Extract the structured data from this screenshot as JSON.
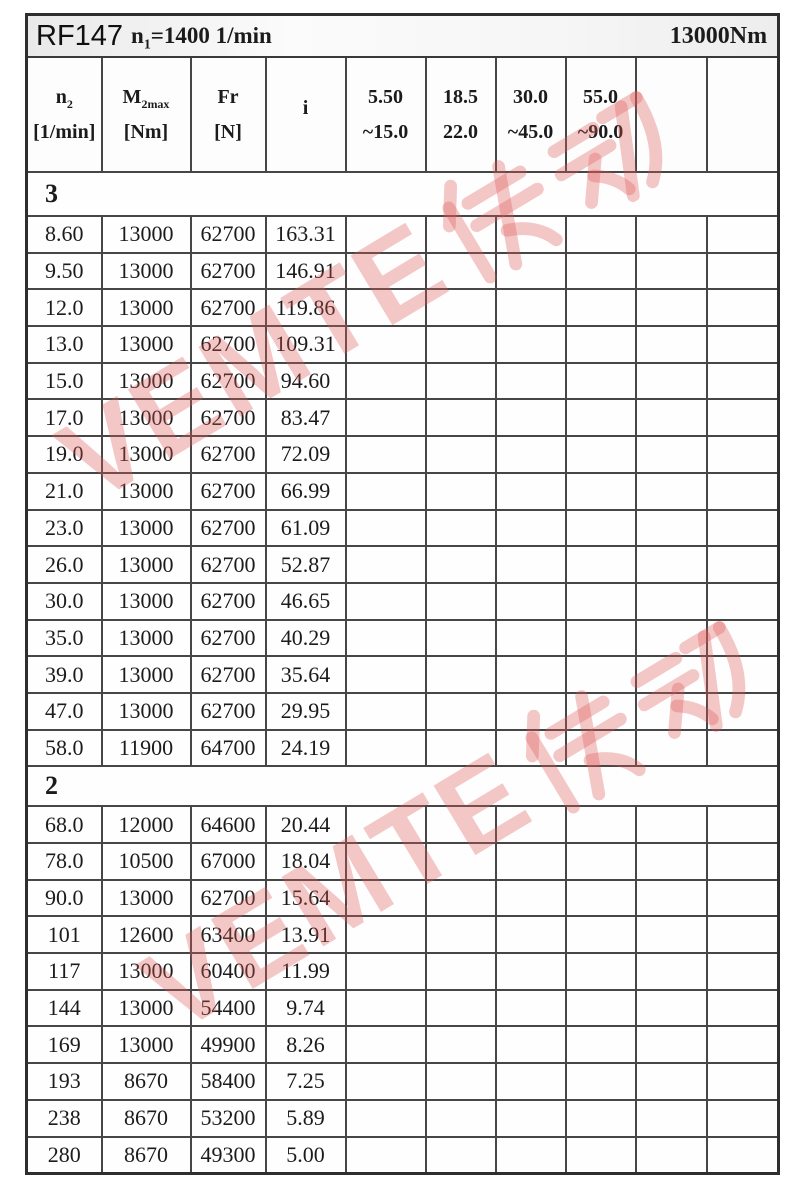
{
  "header": {
    "model": "RF147",
    "n1_prefix": "n",
    "n1_sub": "1",
    "n1_rest": "=1400 1/min",
    "torque": "13000Nm"
  },
  "columns": [
    {
      "t1": "n",
      "sub": "2",
      "line2": "[1/min]"
    },
    {
      "t1": "M",
      "sub": "2max",
      "line2": "[Nm]"
    },
    {
      "t1": "Fr",
      "sub": "",
      "line2": "[N]"
    },
    {
      "t1": "i",
      "sub": "",
      "line2": ""
    },
    {
      "t1": "5.50",
      "sub": "",
      "line2": "~15.0"
    },
    {
      "t1": "18.5",
      "sub": "",
      "line2": "22.0"
    },
    {
      "t1": "30.0",
      "sub": "",
      "line2": "~45.0"
    },
    {
      "t1": "55.0",
      "sub": "",
      "line2": "~90.0"
    },
    {
      "t1": "",
      "sub": "",
      "line2": ""
    },
    {
      "t1": "",
      "sub": "",
      "line2": ""
    }
  ],
  "sections": [
    {
      "label": "3",
      "rows": [
        {
          "n2": "8.60",
          "m2max": "13000",
          "fr": "62700",
          "i": "163.31",
          "shade": [
            1,
            0,
            0,
            0
          ]
        },
        {
          "n2": "9.50",
          "m2max": "13000",
          "fr": "62700",
          "i": "146.91",
          "shade": [
            1,
            1,
            0,
            0
          ]
        },
        {
          "n2": "12.0",
          "m2max": "13000",
          "fr": "62700",
          "i": "119.86",
          "shade": [
            1,
            1,
            1,
            0
          ]
        },
        {
          "n2": "13.0",
          "m2max": "13000",
          "fr": "62700",
          "i": "109.31",
          "shade": [
            1,
            1,
            1,
            0
          ]
        },
        {
          "n2": "15.0",
          "m2max": "13000",
          "fr": "62700",
          "i": "94.60",
          "shade": [
            1,
            1,
            1,
            1
          ]
        },
        {
          "n2": "17.0",
          "m2max": "13000",
          "fr": "62700",
          "i": "83.47",
          "shade": [
            1,
            1,
            1,
            1
          ]
        },
        {
          "n2": "19.0",
          "m2max": "13000",
          "fr": "62700",
          "i": "72.09",
          "shade": [
            1,
            1,
            1,
            1
          ]
        },
        {
          "n2": "21.0",
          "m2max": "13000",
          "fr": "62700",
          "i": "66.99",
          "shade": [
            1,
            1,
            1,
            0
          ]
        },
        {
          "n2": "23.0",
          "m2max": "13000",
          "fr": "62700",
          "i": "61.09",
          "shade": [
            1,
            1,
            1,
            0
          ]
        },
        {
          "n2": "26.0",
          "m2max": "13000",
          "fr": "62700",
          "i": "52.87",
          "shade": [
            1,
            1,
            1,
            1
          ]
        },
        {
          "n2": "30.0",
          "m2max": "13000",
          "fr": "62700",
          "i": "46.65",
          "shade": [
            1,
            1,
            1,
            1
          ]
        },
        {
          "n2": "35.0",
          "m2max": "13000",
          "fr": "62700",
          "i": "40.29",
          "shade": [
            1,
            1,
            1,
            1
          ]
        },
        {
          "n2": "39.0",
          "m2max": "13000",
          "fr": "62700",
          "i": "35.64",
          "shade": [
            1,
            1,
            1,
            1
          ]
        },
        {
          "n2": "47.0",
          "m2max": "13000",
          "fr": "62700",
          "i": "29.95",
          "shade": [
            1,
            1,
            1,
            1
          ]
        },
        {
          "n2": "58.0",
          "m2max": "11900",
          "fr": "64700",
          "i": "24.19",
          "shade": [
            0,
            1,
            1,
            1
          ]
        }
      ]
    },
    {
      "label": "2",
      "rows": [
        {
          "n2": "68.0",
          "m2max": "12000",
          "fr": "64600",
          "i": "20.44",
          "shade": [
            1,
            1,
            1,
            1
          ]
        },
        {
          "n2": "78.0",
          "m2max": "10500",
          "fr": "67000",
          "i": "18.04",
          "shade": [
            1,
            1,
            1,
            1
          ]
        },
        {
          "n2": "90.0",
          "m2max": "13000",
          "fr": "62700",
          "i": "15.64",
          "shade": [
            1,
            1,
            1,
            1
          ]
        },
        {
          "n2": "101",
          "m2max": "12600",
          "fr": "63400",
          "i": "13.91",
          "shade": [
            1,
            1,
            1,
            1
          ]
        },
        {
          "n2": "117",
          "m2max": "13000",
          "fr": "60400",
          "i": "11.99",
          "shade": [
            1,
            1,
            1,
            1
          ]
        },
        {
          "n2": "144",
          "m2max": "13000",
          "fr": "54400",
          "i": "9.74",
          "shade": [
            0,
            1,
            1,
            1
          ]
        },
        {
          "n2": "169",
          "m2max": "13000",
          "fr": "49900",
          "i": "8.26",
          "shade": [
            0,
            0,
            1,
            1
          ]
        },
        {
          "n2": "193",
          "m2max": "8670",
          "fr": "58400",
          "i": "7.25",
          "shade": [
            1,
            1,
            1,
            1
          ]
        },
        {
          "n2": "238",
          "m2max": "8670",
          "fr": "53200",
          "i": "5.89",
          "shade": [
            0,
            1,
            1,
            1
          ]
        },
        {
          "n2": "280",
          "m2max": "8670",
          "fr": "49300",
          "i": "5.00",
          "shade": [
            0,
            0,
            1,
            1
          ]
        }
      ]
    }
  ],
  "watermark": {
    "text": "VEMTE"
  },
  "colors": {
    "shade": "#ededed",
    "watermark": "rgba(226,88,88,0.33)",
    "border": "#464646"
  }
}
